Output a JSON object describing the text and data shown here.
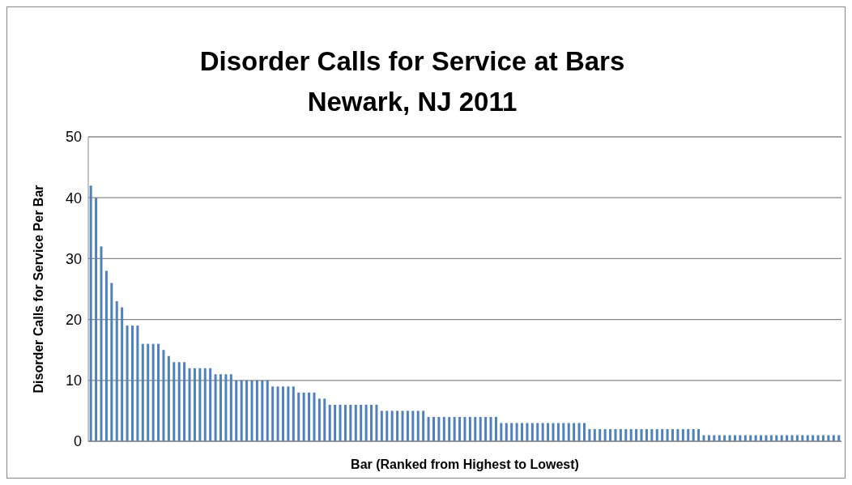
{
  "chart_data": {
    "type": "bar",
    "title": "Disorder Calls for Service at Bars",
    "subtitle": "Newark, NJ 2011",
    "xlabel": "Bar (Ranked from Highest to Lowest)",
    "ylabel": "Disorder Calls for Service Per Bar",
    "color": "#4f81bd",
    "ylim": [
      0,
      50
    ],
    "yticks": [
      0,
      10,
      20,
      30,
      40,
      50
    ],
    "grid": "y",
    "categories": [
      null,
      null,
      null,
      null,
      null,
      null,
      null,
      null,
      null,
      null,
      null,
      null,
      null,
      null,
      null,
      null,
      null,
      null,
      null,
      null,
      null,
      null,
      null,
      null,
      null,
      null,
      null,
      null,
      null,
      null,
      null,
      null,
      null,
      null,
      null,
      null,
      null,
      null,
      null,
      null,
      null,
      null,
      null,
      null,
      null,
      null,
      null,
      null,
      null,
      null,
      null,
      null,
      null,
      null,
      null,
      null,
      null,
      null,
      null,
      null,
      null,
      null,
      null,
      null,
      null,
      null,
      null,
      null,
      null,
      null,
      null,
      null,
      null,
      null,
      null,
      null,
      null,
      null,
      null,
      null,
      null,
      null,
      null,
      null,
      null,
      null,
      null,
      null,
      null,
      null,
      null,
      null,
      null,
      null,
      null,
      null,
      null,
      null,
      null,
      null,
      null,
      null,
      null,
      null,
      null,
      null,
      null,
      null,
      null,
      null,
      null,
      null,
      null,
      null,
      null,
      null,
      null,
      null,
      null,
      null,
      null,
      null,
      null,
      null,
      null,
      null,
      null,
      null,
      null,
      null,
      null,
      null,
      null,
      null,
      null,
      null,
      null,
      null,
      null,
      null,
      null,
      null,
      null,
      null,
      null
    ],
    "values": [
      42,
      40,
      32,
      28,
      26,
      23,
      22,
      19,
      19,
      19,
      16,
      16,
      16,
      16,
      15,
      14,
      13,
      13,
      13,
      12,
      12,
      12,
      12,
      12,
      11,
      11,
      11,
      11,
      10,
      10,
      10,
      10,
      10,
      10,
      10,
      9,
      9,
      9,
      9,
      9,
      8,
      8,
      8,
      8,
      7,
      7,
      6,
      6,
      6,
      6,
      6,
      6,
      6,
      6,
      6,
      6,
      5,
      5,
      5,
      5,
      5,
      5,
      5,
      5,
      5,
      4,
      4,
      4,
      4,
      4,
      4,
      4,
      4,
      4,
      4,
      4,
      4,
      4,
      4,
      3,
      3,
      3,
      3,
      3,
      3,
      3,
      3,
      3,
      3,
      3,
      3,
      3,
      3,
      3,
      3,
      3,
      2,
      2,
      2,
      2,
      2,
      2,
      2,
      2,
      2,
      2,
      2,
      2,
      2,
      2,
      2,
      2,
      2,
      2,
      2,
      2,
      2,
      2,
      1,
      1,
      1,
      1,
      1,
      1,
      1,
      1,
      1,
      1,
      1,
      1,
      1,
      1,
      1,
      1,
      1,
      1,
      1,
      1,
      1,
      1,
      1,
      1,
      1,
      1,
      1
    ]
  }
}
